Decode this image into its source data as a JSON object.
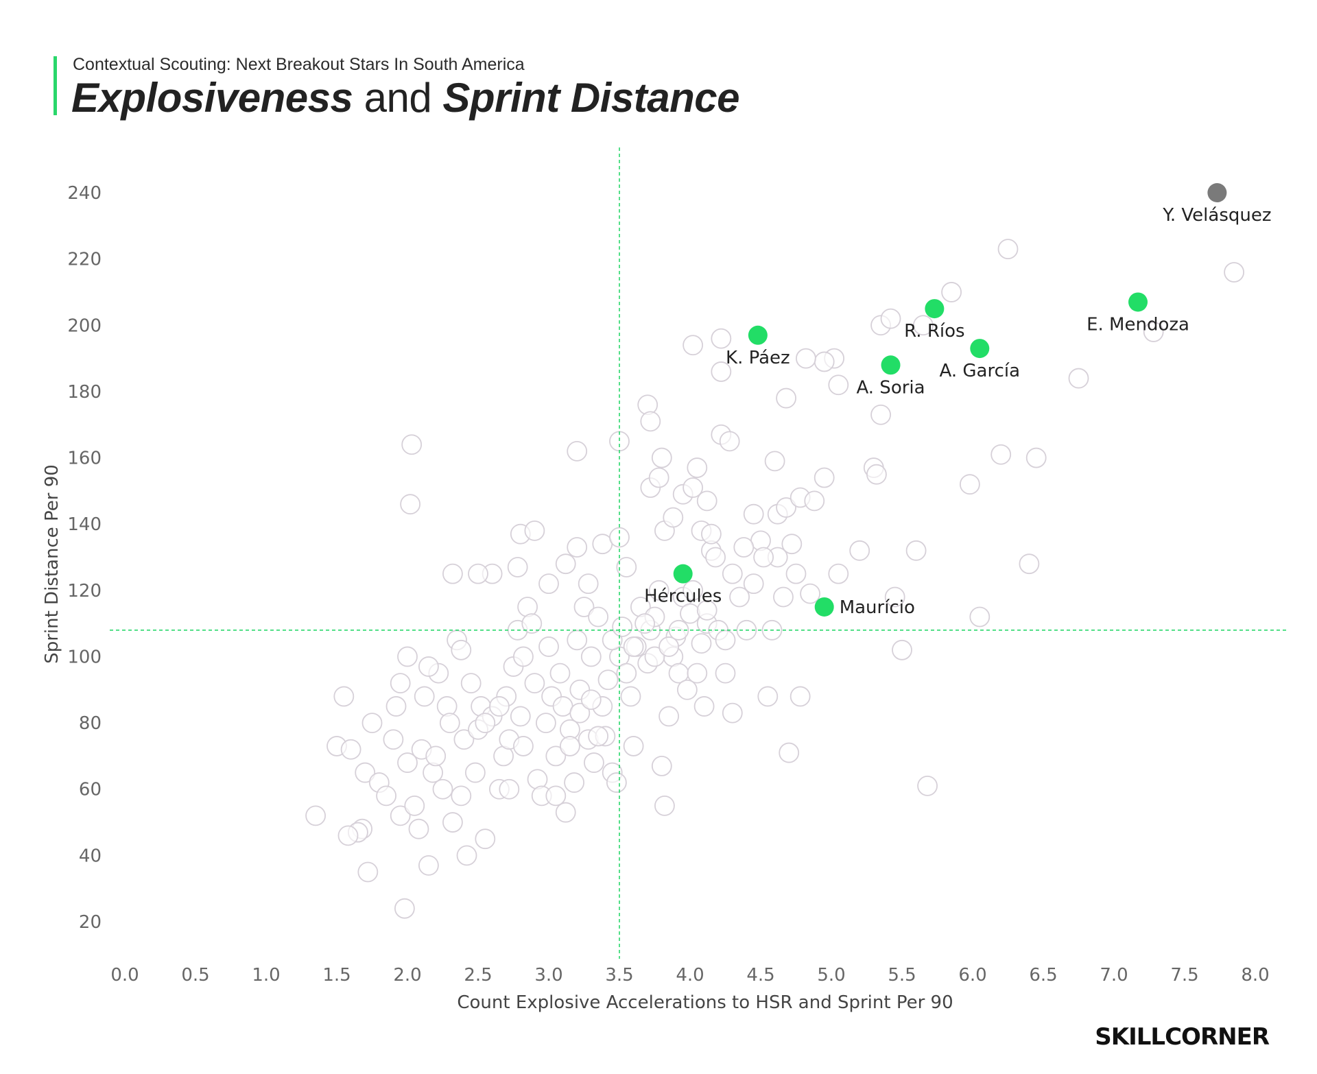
{
  "header": {
    "subtitle": "Contextual Scouting: Next Breakout Stars In South America",
    "title_part1": "Explosiveness",
    "title_part2": "and",
    "title_part3": "Sprint Distance"
  },
  "logo": "SKILLCORNER",
  "colors": {
    "accent": "#2ad76b",
    "highlight": "#22dd66",
    "top_player": "#7a7a7a",
    "background_point_fill": "#ffffff",
    "background_point_stroke": "#d6d0d8",
    "reference_line": "#2ad76b"
  },
  "chart_data": {
    "type": "scatter",
    "title": "Explosiveness and Sprint Distance",
    "xlabel": "Count Explosive Accelerations to HSR and Sprint Per 90",
    "ylabel": "Sprint Distance Per 90",
    "xlim": [
      0,
      8
    ],
    "ylim": [
      10,
      250
    ],
    "xticks": [
      "0.0",
      "0.5",
      "1.0",
      "1.5",
      "2.0",
      "2.5",
      "3.0",
      "3.5",
      "4.0",
      "4.5",
      "5.0",
      "5.5",
      "6.0",
      "6.5",
      "7.0",
      "7.5",
      "8.0"
    ],
    "yticks": [
      "20",
      "40",
      "60",
      "80",
      "100",
      "120",
      "140",
      "160",
      "180",
      "200",
      "220",
      "240"
    ],
    "reference_lines": {
      "x": 3.5,
      "y": 108
    },
    "highlighted": [
      {
        "name": "Y. Velásquez",
        "x": 7.73,
        "y": 240,
        "color": "#7a7a7a",
        "label_pos": "below"
      },
      {
        "name": "E. Mendoza",
        "x": 7.17,
        "y": 207,
        "color": "#22dd66",
        "label_pos": "below"
      },
      {
        "name": "R. Ríos",
        "x": 5.73,
        "y": 205,
        "color": "#22dd66",
        "label_pos": "below"
      },
      {
        "name": "A. García",
        "x": 6.05,
        "y": 193,
        "color": "#22dd66",
        "label_pos": "below"
      },
      {
        "name": "K. Páez",
        "x": 4.48,
        "y": 197,
        "color": "#22dd66",
        "label_pos": "below"
      },
      {
        "name": "A. Soria",
        "x": 5.42,
        "y": 188,
        "color": "#22dd66",
        "label_pos": "below"
      },
      {
        "name": "Hércules",
        "x": 3.95,
        "y": 125,
        "color": "#22dd66",
        "label_pos": "below"
      },
      {
        "name": "Maurício",
        "x": 4.95,
        "y": 115,
        "color": "#22dd66",
        "label_pos": "right"
      }
    ],
    "others": [
      [
        1.35,
        52
      ],
      [
        1.5,
        73
      ],
      [
        1.55,
        88
      ],
      [
        1.6,
        72
      ],
      [
        1.65,
        47
      ],
      [
        1.7,
        65
      ],
      [
        1.68,
        48
      ],
      [
        1.72,
        35
      ],
      [
        1.75,
        80
      ],
      [
        1.8,
        62
      ],
      [
        1.85,
        58
      ],
      [
        1.9,
        75
      ],
      [
        1.92,
        85
      ],
      [
        1.95,
        52
      ],
      [
        1.98,
        24
      ],
      [
        2.0,
        68
      ],
      [
        2.05,
        55
      ],
      [
        2.08,
        48
      ],
      [
        2.1,
        72
      ],
      [
        2.12,
        88
      ],
      [
        2.15,
        37
      ],
      [
        2.18,
        65
      ],
      [
        2.2,
        70
      ],
      [
        2.22,
        95
      ],
      [
        2.25,
        60
      ],
      [
        2.28,
        85
      ],
      [
        2.3,
        80
      ],
      [
        2.32,
        50
      ],
      [
        2.35,
        105
      ],
      [
        2.38,
        58
      ],
      [
        2.4,
        75
      ],
      [
        2.42,
        40
      ],
      [
        2.45,
        92
      ],
      [
        2.48,
        65
      ],
      [
        2.5,
        78
      ],
      [
        2.52,
        85
      ],
      [
        2.55,
        45
      ],
      [
        2.6,
        82
      ],
      [
        2.65,
        60
      ],
      [
        2.68,
        70
      ],
      [
        2.7,
        88
      ],
      [
        2.72,
        75
      ],
      [
        2.75,
        97
      ],
      [
        2.78,
        108
      ],
      [
        2.8,
        82
      ],
      [
        2.82,
        73
      ],
      [
        2.85,
        115
      ],
      [
        2.9,
        92
      ],
      [
        2.92,
        63
      ],
      [
        2.95,
        58
      ],
      [
        2.98,
        80
      ],
      [
        3.0,
        103
      ],
      [
        3.02,
        88
      ],
      [
        3.05,
        70
      ],
      [
        3.08,
        95
      ],
      [
        3.1,
        85
      ],
      [
        3.12,
        53
      ],
      [
        3.15,
        78
      ],
      [
        3.18,
        62
      ],
      [
        3.2,
        105
      ],
      [
        3.22,
        90
      ],
      [
        3.25,
        115
      ],
      [
        3.28,
        75
      ],
      [
        3.3,
        100
      ],
      [
        3.32,
        68
      ],
      [
        3.35,
        112
      ],
      [
        3.38,
        85
      ],
      [
        3.4,
        76
      ],
      [
        3.42,
        93
      ],
      [
        3.45,
        65
      ],
      [
        3.48,
        62
      ],
      [
        3.5,
        100
      ],
      [
        3.55,
        95
      ],
      [
        3.58,
        88
      ],
      [
        3.6,
        73
      ],
      [
        3.62,
        103
      ],
      [
        3.65,
        115
      ],
      [
        3.7,
        98
      ],
      [
        3.72,
        108
      ],
      [
        3.75,
        112
      ],
      [
        3.78,
        120
      ],
      [
        3.8,
        67
      ],
      [
        3.82,
        55
      ],
      [
        3.85,
        82
      ],
      [
        3.88,
        100
      ],
      [
        3.9,
        106
      ],
      [
        3.92,
        95
      ],
      [
        3.95,
        118
      ],
      [
        3.98,
        90
      ],
      [
        4.0,
        113
      ],
      [
        4.05,
        95
      ],
      [
        4.08,
        104
      ],
      [
        4.1,
        85
      ],
      [
        4.12,
        110
      ],
      [
        4.15,
        132
      ],
      [
        4.2,
        108
      ],
      [
        4.25,
        95
      ],
      [
        4.3,
        83
      ],
      [
        4.35,
        118
      ],
      [
        4.4,
        108
      ],
      [
        4.45,
        122
      ],
      [
        4.5,
        135
      ],
      [
        4.55,
        88
      ],
      [
        4.58,
        108
      ],
      [
        4.62,
        130
      ],
      [
        4.66,
        118
      ],
      [
        4.7,
        71
      ],
      [
        4.75,
        125
      ],
      [
        4.78,
        88
      ],
      [
        4.85,
        119
      ],
      [
        1.65,
        47
      ],
      [
        2.02,
        146
      ],
      [
        2.03,
        164
      ],
      [
        2.6,
        125
      ],
      [
        2.32,
        125
      ],
      [
        2.5,
        125
      ],
      [
        2.78,
        127
      ],
      [
        2.8,
        137
      ],
      [
        2.9,
        138
      ],
      [
        3.0,
        122
      ],
      [
        3.12,
        128
      ],
      [
        3.2,
        133
      ],
      [
        3.28,
        122
      ],
      [
        3.38,
        134
      ],
      [
        3.5,
        136
      ],
      [
        3.55,
        127
      ],
      [
        3.2,
        162
      ],
      [
        3.5,
        165
      ],
      [
        3.7,
        176
      ],
      [
        3.72,
        171
      ],
      [
        3.8,
        160
      ],
      [
        3.72,
        151
      ],
      [
        3.78,
        154
      ],
      [
        3.82,
        138
      ],
      [
        3.88,
        142
      ],
      [
        3.95,
        149
      ],
      [
        4.02,
        151
      ],
      [
        4.05,
        157
      ],
      [
        4.08,
        138
      ],
      [
        4.12,
        147
      ],
      [
        4.15,
        137
      ],
      [
        4.18,
        130
      ],
      [
        4.22,
        167
      ],
      [
        4.28,
        165
      ],
      [
        4.3,
        125
      ],
      [
        4.38,
        133
      ],
      [
        4.45,
        143
      ],
      [
        4.52,
        130
      ],
      [
        4.6,
        159
      ],
      [
        4.62,
        143
      ],
      [
        4.68,
        145
      ],
      [
        4.72,
        134
      ],
      [
        4.78,
        148
      ],
      [
        4.88,
        147
      ],
      [
        4.95,
        154
      ],
      [
        5.05,
        125
      ],
      [
        5.2,
        132
      ],
      [
        5.3,
        157
      ],
      [
        5.32,
        155
      ],
      [
        5.45,
        118
      ],
      [
        5.5,
        102
      ],
      [
        5.6,
        132
      ],
      [
        5.68,
        61
      ],
      [
        5.98,
        152
      ],
      [
        6.05,
        112
      ],
      [
        6.2,
        161
      ],
      [
        6.4,
        128
      ],
      [
        6.45,
        160
      ],
      [
        6.75,
        184
      ],
      [
        6.25,
        223
      ],
      [
        7.28,
        198
      ],
      [
        7.85,
        216
      ],
      [
        5.85,
        210
      ],
      [
        5.35,
        200
      ],
      [
        5.42,
        202
      ],
      [
        5.02,
        190
      ],
      [
        4.95,
        189
      ],
      [
        4.82,
        190
      ],
      [
        4.68,
        178
      ],
      [
        4.22,
        196
      ],
      [
        4.02,
        194
      ],
      [
        4.22,
        186
      ],
      [
        5.05,
        182
      ],
      [
        5.35,
        173
      ],
      [
        5.65,
        200
      ],
      [
        1.58,
        46
      ],
      [
        1.95,
        92
      ],
      [
        2.0,
        100
      ],
      [
        2.15,
        97
      ],
      [
        2.38,
        102
      ],
      [
        2.55,
        80
      ],
      [
        2.65,
        85
      ],
      [
        2.72,
        60
      ],
      [
        2.82,
        100
      ],
      [
        2.88,
        110
      ],
      [
        3.05,
        58
      ],
      [
        3.15,
        73
      ],
      [
        3.22,
        83
      ],
      [
        3.3,
        87
      ],
      [
        3.35,
        76
      ],
      [
        3.45,
        105
      ],
      [
        3.52,
        109
      ],
      [
        3.6,
        103
      ],
      [
        3.68,
        110
      ],
      [
        3.75,
        100
      ],
      [
        3.85,
        103
      ],
      [
        3.92,
        108
      ],
      [
        4.02,
        120
      ],
      [
        4.12,
        114
      ],
      [
        4.25,
        105
      ]
    ]
  }
}
